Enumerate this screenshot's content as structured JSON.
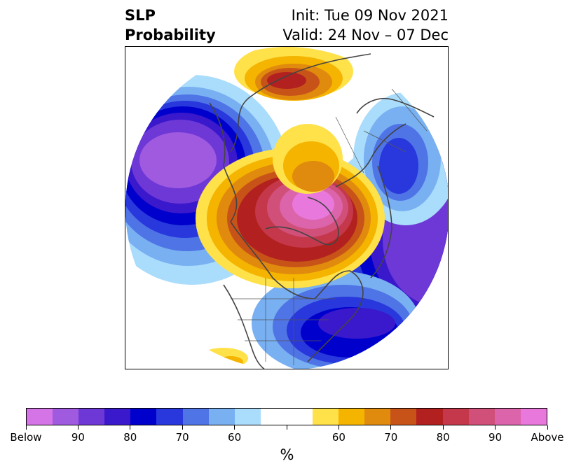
{
  "title": {
    "left_line1": "SLP",
    "left_line2": "Probability",
    "right_line1": "Init: Tue 09 Nov 2021",
    "right_line2": "Valid: 24 Nov – 07 Dec"
  },
  "colorbar": {
    "colors": [
      "#d574e6",
      "#9f5ae0",
      "#6e38d6",
      "#3a18cc",
      "#0000cc",
      "#2838dc",
      "#4f74e6",
      "#78b0f2",
      "#aadcfb",
      "#ffffff",
      "#ffffff",
      "#ffe14a",
      "#f4b400",
      "#e08a0e",
      "#c85318",
      "#b2211f",
      "#c5384c",
      "#d0507a",
      "#dc64ab",
      "#e878dc"
    ],
    "tick_labels": [
      "Below",
      "90",
      "80",
      "70",
      "60",
      "60",
      "70",
      "80",
      "90",
      "Above"
    ],
    "unit_label": "%"
  },
  "map": {
    "projection": "north-polar-stereographic",
    "anomaly_regions": [
      {
        "region": "North Pacific / Aleutians",
        "sign": "below",
        "max_category": "90"
      },
      {
        "region": "Arctic / Greenland / Canadian Archipelago",
        "sign": "above",
        "max_category": "Above"
      },
      {
        "region": "Northeast Asia / Siberia",
        "sign": "above",
        "max_category": "80"
      },
      {
        "region": "Scandinavia / Europe",
        "sign": "below",
        "max_category": "80"
      },
      {
        "region": "North Atlantic",
        "sign": "below",
        "max_category": "90"
      },
      {
        "region": "Eastern North America",
        "sign": "below",
        "max_category": "80"
      }
    ]
  }
}
